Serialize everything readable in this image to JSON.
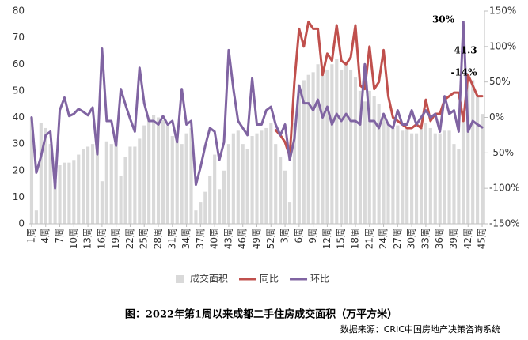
{
  "chart_data": {
    "type": "bar_line",
    "title": "图：2022年第1周以来成都二手住房成交面积（万平方米）",
    "source": "数据来源：CRIC中国房地产决策咨询系统",
    "annotations": [
      "30%",
      "41.3",
      "-14%"
    ],
    "categories": [
      "1周",
      null,
      null,
      "4周",
      null,
      null,
      "7周",
      null,
      null,
      "10周",
      null,
      null,
      "13周",
      null,
      null,
      "16周",
      null,
      null,
      "19周",
      null,
      null,
      "22周",
      null,
      null,
      "25周",
      null,
      null,
      "28周",
      null,
      null,
      "31周",
      null,
      null,
      "34周",
      null,
      null,
      "37周",
      null,
      null,
      "40周",
      null,
      null,
      "43周",
      null,
      null,
      "46周",
      null,
      null,
      "49周",
      null,
      null,
      "52周",
      null,
      null,
      "3周",
      null,
      null,
      "6周",
      null,
      null,
      "9周",
      null,
      null,
      "12周",
      null,
      null,
      "15周",
      null,
      null,
      "18周",
      null,
      null,
      "21周",
      null,
      null,
      "24周",
      null,
      null,
      "27周",
      null,
      null,
      "30周",
      null,
      null,
      "33周",
      null,
      null,
      "36周",
      null,
      null,
      "39周",
      null,
      null,
      "42周",
      null,
      null,
      "45周"
    ],
    "series": [
      {
        "name": "成交面积",
        "kind": "bar",
        "color": "#d9d9d9",
        "values": [
          40,
          5,
          38,
          36,
          30,
          16,
          22,
          23,
          23,
          24,
          26,
          28,
          29,
          30,
          34,
          16,
          31,
          30,
          32,
          18,
          25,
          29,
          29,
          32,
          37,
          40,
          41,
          40,
          39,
          37,
          33,
          31,
          30,
          34,
          36,
          5,
          8,
          12,
          18,
          26,
          13,
          20,
          30,
          34,
          35,
          30,
          28,
          33,
          34,
          35,
          36,
          38,
          30,
          25,
          20,
          8,
          38,
          52,
          54,
          56,
          57,
          60,
          56,
          58,
          60,
          62,
          58,
          60,
          58,
          55,
          50,
          46,
          50,
          48,
          45,
          40,
          38,
          36,
          37,
          35,
          36,
          34,
          34,
          36,
          38,
          36,
          34,
          34,
          35,
          35,
          30,
          28,
          40,
          52,
          54,
          48,
          41.3
        ]
      },
      {
        "name": "同比",
        "kind": "line",
        "axis": "y2",
        "color": "#c0504d",
        "values": [
          null,
          null,
          null,
          null,
          null,
          null,
          null,
          null,
          null,
          null,
          null,
          null,
          null,
          null,
          null,
          null,
          null,
          null,
          null,
          null,
          null,
          null,
          null,
          null,
          null,
          null,
          null,
          null,
          null,
          null,
          null,
          null,
          null,
          null,
          null,
          null,
          null,
          null,
          null,
          null,
          null,
          null,
          null,
          null,
          null,
          null,
          null,
          null,
          null,
          null,
          null,
          null,
          -18,
          -25,
          -35,
          -55,
          50,
          125,
          100,
          135,
          125,
          125,
          60,
          90,
          80,
          130,
          80,
          75,
          85,
          130,
          45,
          40,
          100,
          40,
          50,
          95,
          30,
          0,
          -5,
          -10,
          -15,
          -15,
          -10,
          -15,
          25,
          -5,
          5,
          5,
          25,
          30,
          35,
          35,
          -5,
          60,
          45,
          30,
          30
        ]
      },
      {
        "name": "环比",
        "kind": "line",
        "axis": "y2",
        "color": "#8064a2",
        "values": [
          0,
          -78,
          -55,
          -25,
          -20,
          -100,
          10,
          28,
          2,
          5,
          12,
          8,
          3,
          14,
          -52,
          97,
          -5,
          -5,
          -40,
          40,
          18,
          -2,
          -20,
          70,
          20,
          -5,
          -5,
          -10,
          2,
          -10,
          -5,
          -35,
          40,
          -10,
          -5,
          -95,
          -70,
          -40,
          -15,
          -20,
          -60,
          -35,
          95,
          40,
          -5,
          -15,
          -25,
          55,
          -10,
          -10,
          10,
          15,
          -10,
          -25,
          -10,
          -60,
          -30,
          45,
          20,
          20,
          10,
          25,
          0,
          15,
          -10,
          5,
          -5,
          5,
          -5,
          -5,
          -10,
          75,
          -5,
          -5,
          -15,
          5,
          -10,
          -15,
          10,
          -10,
          -10,
          10,
          -10,
          0,
          10,
          0,
          5,
          -20,
          30,
          5,
          10,
          -20,
          135,
          -20,
          -5,
          -10,
          -14
        ]
      }
    ],
    "ylim": [
      0,
      80
    ],
    "yticks": [
      0,
      10,
      20,
      30,
      40,
      50,
      60,
      70,
      80
    ],
    "y2lim": [
      -150,
      150
    ],
    "y2ticks": [
      {
        "value": -150,
        "label": "-150%"
      },
      {
        "value": -100,
        "label": "-100%"
      },
      {
        "value": -50,
        "label": "-50%"
      },
      {
        "value": 0,
        "label": "0%"
      },
      {
        "value": 50,
        "label": "50%"
      },
      {
        "value": 100,
        "label": "100%"
      },
      {
        "value": 150,
        "label": "150%"
      }
    ]
  }
}
